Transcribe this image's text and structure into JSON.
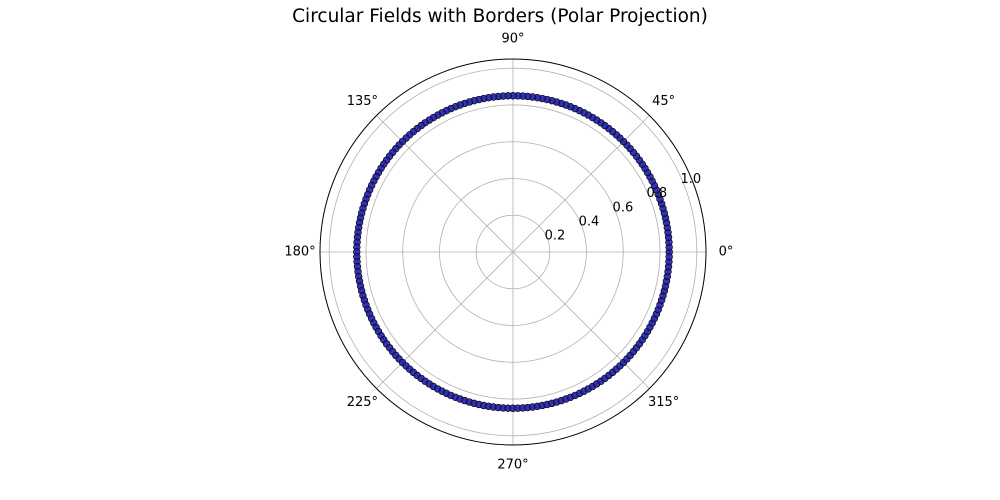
{
  "chart_data": {
    "type": "scatter",
    "projection": "polar",
    "title": "Circular Fields with Borders (Polar Projection)",
    "theta_ticks_deg": [
      0,
      45,
      90,
      135,
      180,
      225,
      270,
      315
    ],
    "theta_tick_labels": [
      "0°",
      "45°",
      "90°",
      "135°",
      "180°",
      "225°",
      "270°",
      "315°"
    ],
    "r_ticks": [
      0.2,
      0.4,
      0.6,
      0.8,
      1.0
    ],
    "r_tick_labels": [
      "0.2",
      "0.4",
      "0.6",
      "0.8",
      "1.0"
    ],
    "rlim": [
      0,
      1.05
    ],
    "grid": true,
    "series": [
      {
        "r": 0.85,
        "theta_deg_start": 0,
        "theta_deg_end": 360,
        "point_count": 200,
        "fill_color": "#1f1fa8",
        "edge_color": "#000000"
      }
    ]
  }
}
